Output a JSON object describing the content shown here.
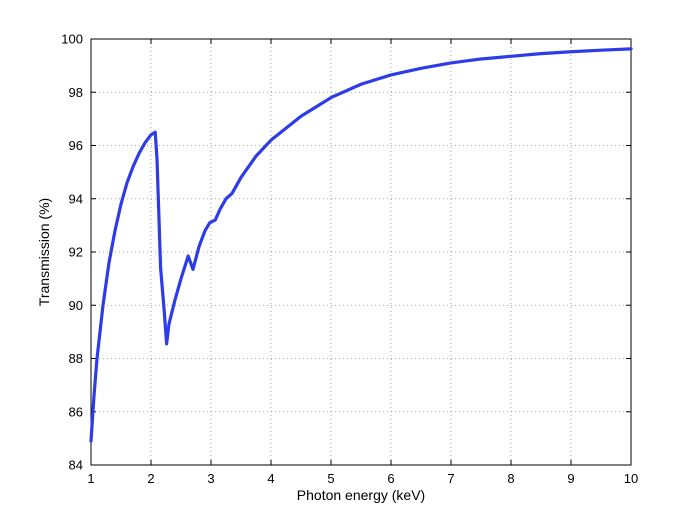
{
  "chart_data": {
    "type": "line",
    "title": "",
    "xlabel": "Photon energy (keV)",
    "ylabel": "Transmission (%)",
    "xlim": [
      1,
      10
    ],
    "ylim": [
      84,
      100
    ],
    "xticks": [
      1,
      2,
      3,
      4,
      5,
      6,
      7,
      8,
      9,
      10
    ],
    "yticks": [
      84,
      86,
      88,
      90,
      92,
      94,
      96,
      98,
      100
    ],
    "grid": true,
    "line_color": "#2e3be8",
    "series": [
      {
        "x": [
          1.0,
          1.05,
          1.1,
          1.2,
          1.3,
          1.4,
          1.5,
          1.6,
          1.7,
          1.8,
          1.9,
          2.0,
          2.07,
          2.1,
          2.16,
          2.22,
          2.26,
          2.3,
          2.4,
          2.5,
          2.62,
          2.7,
          2.8,
          2.9,
          2.98,
          3.07,
          3.15,
          3.25,
          3.35,
          3.5,
          3.75,
          4.0,
          4.5,
          5.0,
          5.5,
          6.0,
          6.5,
          7.0,
          7.5,
          8.0,
          8.5,
          9.0,
          9.5,
          10.0
        ],
        "y": [
          84.9,
          86.6,
          88.0,
          90.0,
          91.6,
          92.8,
          93.8,
          94.6,
          95.2,
          95.7,
          96.1,
          96.4,
          96.5,
          95.5,
          91.4,
          89.8,
          88.55,
          89.3,
          90.2,
          91.0,
          91.85,
          91.35,
          92.2,
          92.8,
          93.1,
          93.2,
          93.6,
          94.0,
          94.2,
          94.8,
          95.6,
          96.2,
          97.1,
          97.8,
          98.3,
          98.65,
          98.9,
          99.1,
          99.25,
          99.35,
          99.45,
          99.52,
          99.58,
          99.63
        ]
      }
    ]
  }
}
